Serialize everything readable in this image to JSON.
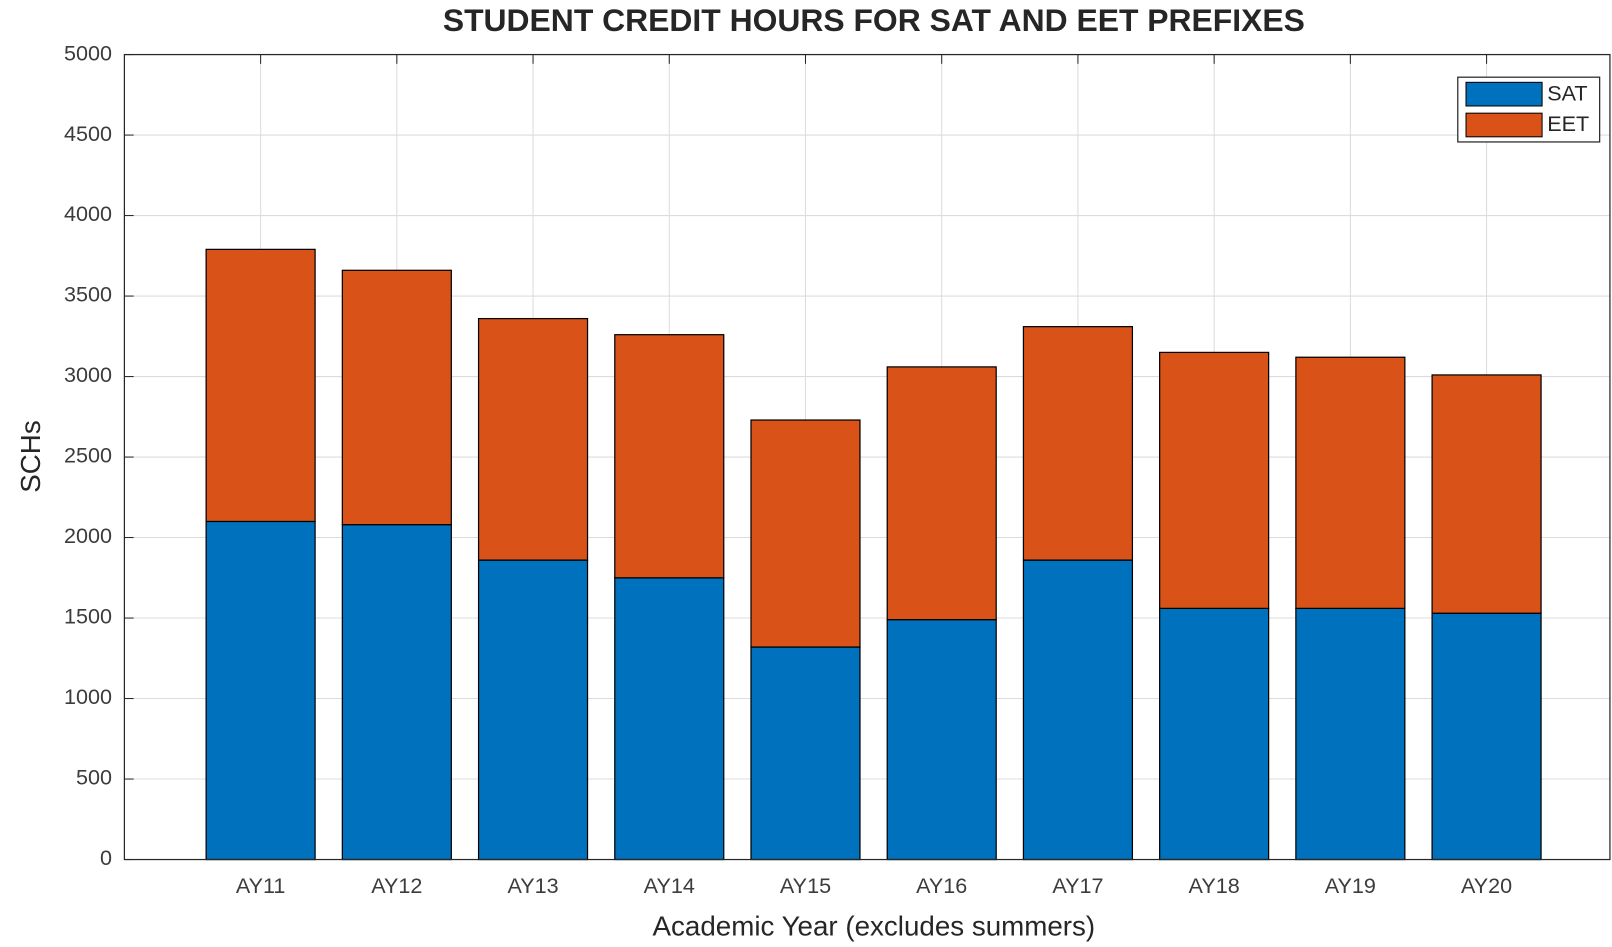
{
  "chart_data": {
    "type": "stacked_bar",
    "title": "STUDENT CREDIT HOURS FOR SAT AND EET PREFIXES",
    "xlabel": "Academic Year (excludes summers)",
    "ylabel": "SCHs",
    "categories": [
      "AY11",
      "AY12",
      "AY13",
      "AY14",
      "AY15",
      "AY16",
      "AY17",
      "AY18",
      "AY19",
      "AY20"
    ],
    "series": [
      {
        "name": "SAT",
        "color": "#0072bd",
        "values": [
          2100,
          2080,
          1860,
          1750,
          1320,
          1490,
          1860,
          1560,
          1560,
          1530
        ]
      },
      {
        "name": "EET",
        "color": "#d95319",
        "values": [
          1690,
          1580,
          1500,
          1510,
          1410,
          1570,
          1450,
          1590,
          1560,
          1480
        ]
      }
    ],
    "ylim": [
      0,
      5000
    ],
    "yticks": [
      0,
      500,
      1000,
      1500,
      2000,
      2500,
      3000,
      3500,
      4000,
      4500,
      5000
    ],
    "grid": true,
    "legend": "northeast"
  }
}
